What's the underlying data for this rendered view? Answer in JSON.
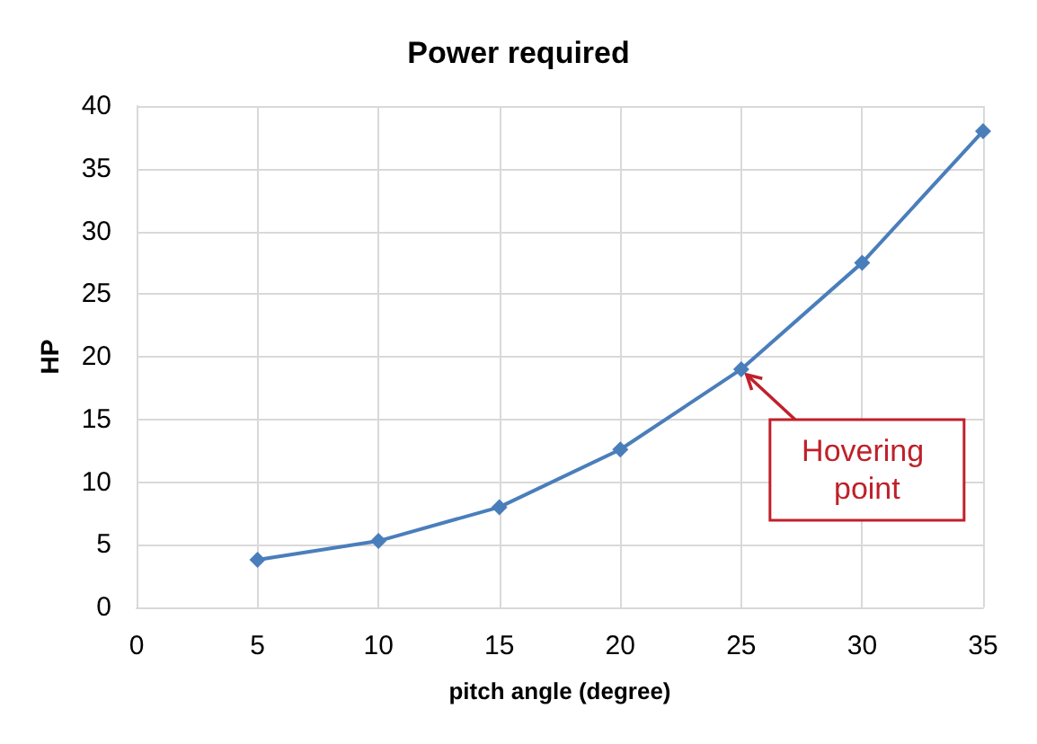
{
  "chart_data": {
    "type": "line",
    "title": "Power required",
    "xlabel": "pitch angle (degree)",
    "ylabel": "HP",
    "x": [
      5,
      10,
      15,
      20,
      25,
      30,
      35
    ],
    "series": [
      {
        "color": "#4a7ebb",
        "values": [
          3.8,
          5.3,
          8.0,
          12.6,
          19.0,
          27.5,
          38.0
        ]
      }
    ],
    "xlim": [
      0,
      35
    ],
    "xticks": [
      0,
      5,
      10,
      15,
      20,
      25,
      30,
      35
    ],
    "ylim": [
      0,
      40
    ],
    "yticks": [
      0,
      5,
      10,
      15,
      20,
      25,
      30,
      35,
      40
    ],
    "grid": true,
    "marker": "diamond",
    "line_style": "solid",
    "annotations": [
      {
        "text": "Hovering point",
        "x": 25,
        "y": 19.0
      }
    ]
  }
}
